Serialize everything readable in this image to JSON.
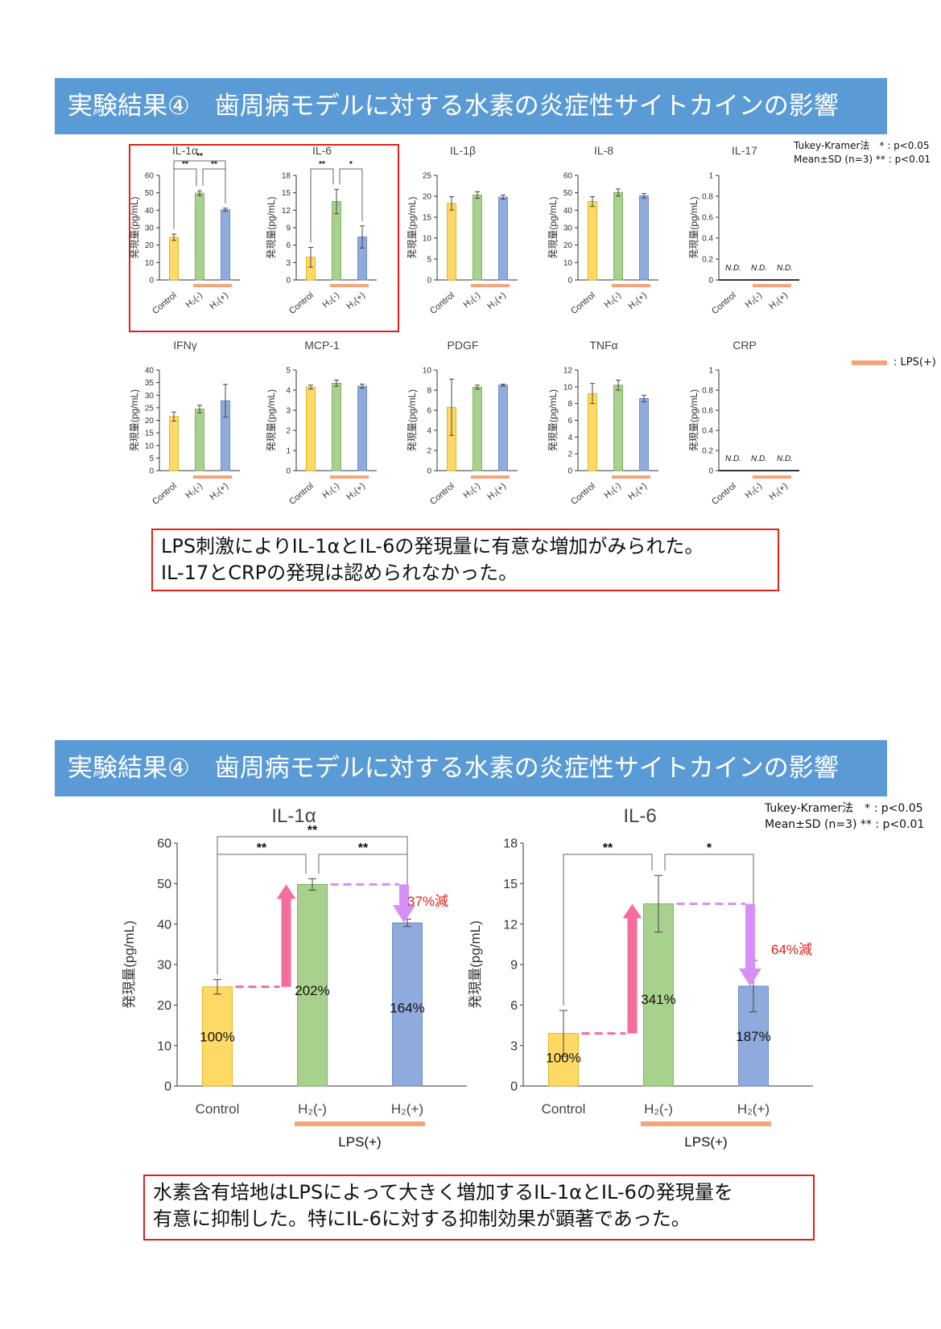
{
  "section1": {
    "banner_title": "実験結果④　歯周病モデルに対する水素の炎症性サイトカインの影響",
    "stat_note": [
      "Tukey-Kramer法　* : p<0.05",
      "Mean±SD (n=3)  ** : p<0.01"
    ],
    "legend_label": ": LPS(+)",
    "conclusion": [
      "LPS刺激によりIL-1αとIL-6の発現量に有意な増加がみられた。",
      "IL-17とCRPの発現は認められなかった。"
    ]
  },
  "section2": {
    "banner_title": "実験結果④　歯周病モデルに対する水素の炎症性サイトカインの影響",
    "stat_note": [
      "Tukey-Kramer法　* : p<0.05",
      "Mean±SD (n=3)  ** : p<0.01"
    ],
    "conclusion": [
      "水素含有培地はLPSによって大きく増加するIL-1αとIL-6の発現量を",
      "有意に抑制した。特にIL-6に対する抑制効果が顕著であった。"
    ]
  },
  "colors": {
    "control": "#ffd966",
    "h2minus": "#a9d18e",
    "h2plus": "#8faadc",
    "lps_bar": "#f4a57c",
    "up_arrow": "#f66c9a",
    "down_arrow": "#d58ff5",
    "red_text": "#e0211b",
    "banner": "#5b9bd5"
  },
  "chart_data": [
    {
      "type": "bar",
      "title": "IL-1α",
      "ylabel": "発現量(pg/mL)",
      "categories": [
        "Control",
        "H₂(-)",
        "H₂(+)"
      ],
      "lps_label": "",
      "ylim": [
        0,
        60
      ],
      "yticks": [
        "0",
        "10",
        "20",
        "30",
        "40",
        "50",
        "60"
      ],
      "values": [
        24.5,
        49.8,
        40.3
      ],
      "errors": [
        1.8,
        1.4,
        0.9
      ],
      "sig": [
        {
          "from": 1,
          "to": 2,
          "label": "**",
          "level": 1
        },
        {
          "from": 0,
          "to": 1,
          "label": "**",
          "level": 1
        },
        {
          "from": 0,
          "to": 2,
          "label": "**",
          "level": 2
        }
      ],
      "nd": false
    },
    {
      "type": "bar",
      "title": "IL-6",
      "ylabel": "発現量(pg/mL)",
      "categories": [
        "Control",
        "H₂(-)",
        "H₂(+)"
      ],
      "lps_label": "",
      "ylim": [
        0,
        18
      ],
      "yticks": [
        "0",
        "3",
        "6",
        "9",
        "12",
        "15",
        "18"
      ],
      "values": [
        3.9,
        13.5,
        7.4
      ],
      "errors": [
        1.7,
        2.1,
        1.9
      ],
      "sig": [
        {
          "from": 0,
          "to": 1,
          "label": "**",
          "level": 1
        },
        {
          "from": 1,
          "to": 2,
          "label": "*",
          "level": 1
        }
      ],
      "nd": false
    },
    {
      "type": "bar",
      "title": "IL-1β",
      "ylabel": "発現量(pg/mL)",
      "categories": [
        "Control",
        "H₂(-)",
        "H₂(+)"
      ],
      "lps_label": "",
      "ylim": [
        0,
        25
      ],
      "yticks": [
        "0",
        "5",
        "10",
        "15",
        "20",
        "25"
      ],
      "values": [
        18.3,
        20.3,
        19.8
      ],
      "errors": [
        1.6,
        0.8,
        0.5
      ],
      "sig": [],
      "nd": false
    },
    {
      "type": "bar",
      "title": "IL-8",
      "ylabel": "発現量(pg/mL)",
      "categories": [
        "Control",
        "H₂(-)",
        "H₂(+)"
      ],
      "lps_label": "",
      "ylim": [
        0,
        60
      ],
      "yticks": [
        "0",
        "10",
        "20",
        "30",
        "40",
        "50",
        "60"
      ],
      "values": [
        45.0,
        50.2,
        48.3
      ],
      "errors": [
        2.8,
        2.0,
        1.3
      ],
      "sig": [],
      "nd": false
    },
    {
      "type": "bar",
      "title": "IL-17",
      "ylabel": "発現量(pg/mL)",
      "categories": [
        "Control",
        "H₂(-)",
        "H₂(+)"
      ],
      "lps_label": "",
      "ylim": [
        0,
        1
      ],
      "yticks": [
        "0",
        "0.2",
        "0.4",
        "0.6",
        "0.8",
        "1"
      ],
      "values": [
        0,
        0,
        0
      ],
      "errors": [
        0,
        0,
        0
      ],
      "sig": [],
      "nd": true,
      "nd_label": "N.D."
    },
    {
      "type": "bar",
      "title": "IFNγ",
      "ylabel": "発現量(pg/mL)",
      "categories": [
        "Control",
        "H₂(-)",
        "H₂(+)"
      ],
      "lps_label": "",
      "ylim": [
        0,
        40
      ],
      "yticks": [
        "0",
        "5",
        "10",
        "15",
        "20",
        "25",
        "30",
        "35",
        "40"
      ],
      "values": [
        21.5,
        24.5,
        27.8
      ],
      "errors": [
        1.8,
        1.5,
        6.5
      ],
      "sig": [],
      "nd": false
    },
    {
      "type": "bar",
      "title": "MCP-1",
      "ylabel": "発現量(pg/mL)",
      "categories": [
        "Control",
        "H₂(-)",
        "H₂(+)"
      ],
      "lps_label": "",
      "ylim": [
        0,
        5
      ],
      "yticks": [
        "0",
        "1",
        "2",
        "3",
        "4",
        "5"
      ],
      "values": [
        4.15,
        4.35,
        4.2
      ],
      "errors": [
        0.1,
        0.15,
        0.1
      ],
      "sig": [],
      "nd": false
    },
    {
      "type": "bar",
      "title": "PDGF",
      "ylabel": "発現量(pg/mL)",
      "categories": [
        "Control",
        "H₂(-)",
        "H₂(+)"
      ],
      "lps_label": "",
      "ylim": [
        0,
        10
      ],
      "yticks": [
        "0",
        "2",
        "4",
        "6",
        "8",
        "10"
      ],
      "values": [
        6.3,
        8.3,
        8.5
      ],
      "errors": [
        2.8,
        0.2,
        0.1
      ],
      "sig": [],
      "nd": false
    },
    {
      "type": "bar",
      "title": "TNFα",
      "ylabel": "発現量(pg/mL)",
      "categories": [
        "Control",
        "H₂(-)",
        "H₂(+)"
      ],
      "lps_label": "",
      "ylim": [
        0,
        12
      ],
      "yticks": [
        "0",
        "2",
        "4",
        "6",
        "8",
        "10",
        "12"
      ],
      "values": [
        9.2,
        10.2,
        8.6
      ],
      "errors": [
        1.2,
        0.6,
        0.4
      ],
      "sig": [],
      "nd": false
    },
    {
      "type": "bar",
      "title": "CRP",
      "ylabel": "発現量(pg/mL)",
      "categories": [
        "Control",
        "H₂(-)",
        "H₂(+)"
      ],
      "lps_label": "",
      "ylim": [
        0,
        1
      ],
      "yticks": [
        "0",
        "0.2",
        "0.4",
        "0.6",
        "0.8",
        "1"
      ],
      "values": [
        0,
        0,
        0
      ],
      "errors": [
        0,
        0,
        0
      ],
      "sig": [],
      "nd": true,
      "nd_label": "N.D."
    },
    {
      "type": "bar",
      "title": "IL-1α",
      "ylabel": "発現量(pg/mL)",
      "categories": [
        "Control",
        "H₂(-)",
        "H₂(+)"
      ],
      "lps_label": "LPS(+)",
      "ylim": [
        0,
        60
      ],
      "yticks": [
        "0",
        "10",
        "20",
        "30",
        "40",
        "50",
        "60"
      ],
      "values": [
        24.5,
        49.8,
        40.3
      ],
      "errors": [
        1.8,
        1.4,
        0.9
      ],
      "bar_labels": [
        "100%",
        "202%",
        "164%"
      ],
      "reduction_label": "37%減",
      "sig": [
        {
          "from": 0,
          "to": 1,
          "label": "**",
          "level": 1
        },
        {
          "from": 1,
          "to": 2,
          "label": "**",
          "level": 1
        },
        {
          "from": 0,
          "to": 2,
          "label": "**",
          "level": 2
        }
      ],
      "nd": false
    },
    {
      "type": "bar",
      "title": "IL-6",
      "ylabel": "発現量(pg/mL)",
      "categories": [
        "Control",
        "H₂(-)",
        "H₂(+)"
      ],
      "lps_label": "LPS(+)",
      "ylim": [
        0,
        18
      ],
      "yticks": [
        "0",
        "3",
        "6",
        "9",
        "12",
        "15",
        "18"
      ],
      "values": [
        3.9,
        13.5,
        7.4
      ],
      "errors": [
        1.7,
        2.1,
        1.9
      ],
      "bar_labels": [
        "100%",
        "341%",
        "187%"
      ],
      "reduction_label": "64%減",
      "sig": [
        {
          "from": 0,
          "to": 1,
          "label": "**",
          "level": 1
        },
        {
          "from": 1,
          "to": 2,
          "label": "*",
          "level": 1
        }
      ],
      "nd": false
    }
  ]
}
